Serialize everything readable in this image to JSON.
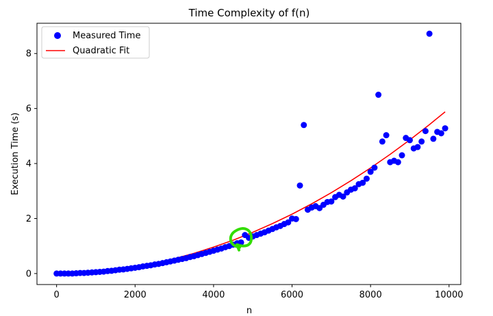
{
  "chart_data": {
    "type": "scatter",
    "title": "Time Complexity of f(n)",
    "xlabel": "n",
    "ylabel": "Execution Time (s)",
    "xlim": [
      -500,
      10300
    ],
    "ylim": [
      -0.4,
      9.1
    ],
    "xticks": [
      0,
      2000,
      4000,
      6000,
      8000,
      10000
    ],
    "yticks": [
      0,
      2,
      4,
      6,
      8
    ],
    "grid": false,
    "legend_position": "top-left",
    "colors": {
      "measured": "#0000ff",
      "fit": "#ff0000",
      "annotation": "#33dd00"
    },
    "series": [
      {
        "name": "Measured Time",
        "kind": "scatter",
        "x": [
          0,
          100,
          200,
          300,
          400,
          500,
          600,
          700,
          800,
          900,
          1000,
          1100,
          1200,
          1300,
          1400,
          1500,
          1600,
          1700,
          1800,
          1900,
          2000,
          2100,
          2200,
          2300,
          2400,
          2500,
          2600,
          2700,
          2800,
          2900,
          3000,
          3100,
          3200,
          3300,
          3400,
          3500,
          3600,
          3700,
          3800,
          3900,
          4000,
          4100,
          4200,
          4300,
          4400,
          4500,
          4600,
          4700,
          4800,
          4900,
          5000,
          5100,
          5200,
          5300,
          5400,
          5500,
          5600,
          5700,
          5800,
          5900,
          6000,
          6100,
          6200,
          6300,
          6400,
          6500,
          6600,
          6700,
          6800,
          6900,
          7000,
          7100,
          7200,
          7300,
          7400,
          7500,
          7600,
          7700,
          7800,
          7900,
          8000,
          8100,
          8200,
          8300,
          8400,
          8500,
          8600,
          8700,
          8800,
          8900,
          9000,
          9100,
          9200,
          9300,
          9400,
          9500,
          9600,
          9700,
          9800,
          9900
        ],
        "y": [
          0.0,
          0.0,
          0.0,
          0.0,
          0.0,
          0.01,
          0.02,
          0.02,
          0.03,
          0.04,
          0.05,
          0.06,
          0.07,
          0.09,
          0.1,
          0.12,
          0.14,
          0.15,
          0.17,
          0.19,
          0.21,
          0.23,
          0.26,
          0.28,
          0.3,
          0.33,
          0.35,
          0.38,
          0.41,
          0.44,
          0.47,
          0.5,
          0.53,
          0.56,
          0.6,
          0.63,
          0.67,
          0.71,
          0.75,
          0.79,
          0.83,
          0.87,
          0.91,
          0.96,
          1.0,
          1.05,
          1.1,
          1.13,
          1.4,
          1.3,
          1.35,
          1.4,
          1.45,
          1.5,
          1.56,
          1.62,
          1.68,
          1.73,
          1.8,
          1.86,
          2.0,
          1.98,
          3.2,
          5.4,
          2.32,
          2.4,
          2.45,
          2.38,
          2.5,
          2.6,
          2.62,
          2.78,
          2.86,
          2.8,
          2.95,
          3.05,
          3.1,
          3.25,
          3.3,
          3.45,
          3.7,
          3.85,
          6.5,
          4.8,
          5.03,
          4.05,
          4.1,
          4.05,
          4.3,
          4.93,
          4.85,
          4.55,
          4.6,
          4.8,
          5.18,
          8.72,
          4.9,
          5.15,
          5.1,
          5.28
        ]
      },
      {
        "name": "Quadratic Fit",
        "kind": "line",
        "x": [
          0,
          500,
          1000,
          1500,
          2000,
          2500,
          3000,
          3500,
          4000,
          4500,
          5000,
          5500,
          6000,
          6500,
          7000,
          7500,
          8000,
          8500,
          9000,
          9500,
          9900
        ],
        "y": [
          0.0,
          0.015,
          0.06,
          0.135,
          0.24,
          0.375,
          0.54,
          0.735,
          0.96,
          1.215,
          1.5,
          1.815,
          2.16,
          2.535,
          2.94,
          3.375,
          3.84,
          4.335,
          4.86,
          5.415,
          5.88
        ]
      }
    ],
    "annotation": {
      "type": "hand-drawn-circle",
      "x": 4700,
      "y": 1.3
    }
  }
}
